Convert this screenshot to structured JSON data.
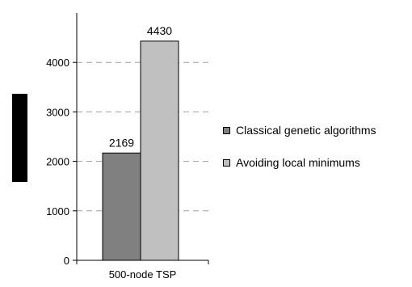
{
  "chart_data": {
    "type": "bar",
    "categories": [
      "500-node TSP"
    ],
    "series": [
      {
        "name": "Classical genetic algorithms",
        "values": [
          2169
        ],
        "color": "#808080"
      },
      {
        "name": "Avoiding local minimums",
        "values": [
          4430
        ],
        "color": "#c0c0c0"
      }
    ],
    "data_labels": [
      "2169",
      "4430"
    ],
    "title": "",
    "xlabel": "",
    "ylabel": "",
    "ylim": [
      0,
      5000
    ],
    "yticks": [
      0,
      1000,
      2000,
      3000,
      4000
    ],
    "ytick_labels": [
      "0",
      "1000",
      "2000",
      "3000",
      "4000"
    ],
    "grid": "dashed horizontal",
    "legend_position": "right"
  }
}
